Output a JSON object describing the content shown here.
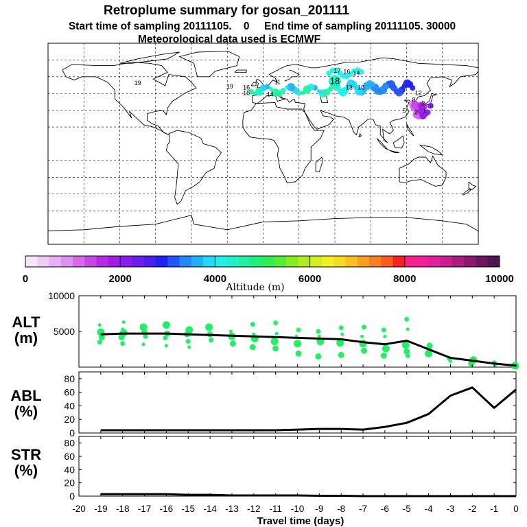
{
  "header": {
    "title": "Retroplume summary for gosan_201111",
    "sampling_line": "Start time of sampling 20111105.    0     End time of sampling 20111105. 30000",
    "met_line": "Meteorological data used is ECMWF"
  },
  "colorbar": {
    "label": "Altitude (m)",
    "ticks": [
      "0",
      "2000",
      "4000",
      "6000",
      "8000",
      "10000"
    ],
    "colors": [
      "#f4e6f8",
      "#eeccf5",
      "#e8b0f2",
      "#df90ee",
      "#d66ae8",
      "#c648e2",
      "#b42ae0",
      "#a01ee4",
      "#8a1ee8",
      "#6a1eea",
      "#4a1eec",
      "#2222f0",
      "#2255f5",
      "#2288f8",
      "#22b0fa",
      "#22d8fc",
      "#22f0e8",
      "#22f0c8",
      "#22f0a0",
      "#22ee78",
      "#33ec55",
      "#55ec33",
      "#88ec22",
      "#b0ec22",
      "#d4ee22",
      "#f0f022",
      "#f4dc22",
      "#f8c022",
      "#f8a022",
      "#f88022",
      "#f85a22",
      "#f02222",
      "#f8228a",
      "#f4209a",
      "#e020a0",
      "#c81e90",
      "#a81c80",
      "#8a1a70",
      "#6a1860",
      "#501450"
    ]
  },
  "map": {
    "labels": [
      {
        "text": "17",
        "lon": 62,
        "lat": 66
      },
      {
        "text": "16",
        "lon": 70,
        "lat": 65
      },
      {
        "text": "14",
        "lon": 78,
        "lat": 64
      },
      {
        "text": "18",
        "lon": 60,
        "lat": 56
      },
      {
        "text": "13",
        "lon": 72,
        "lat": 51
      },
      {
        "text": "10",
        "lon": 82,
        "lat": 51
      },
      {
        "text": "19",
        "lon": -28,
        "lat": 52
      },
      {
        "text": "16",
        "lon": -14,
        "lat": 51
      },
      {
        "text": "15",
        "lon": -14,
        "lat": 46
      },
      {
        "text": "14",
        "lon": 6,
        "lat": 45
      },
      {
        "text": "11",
        "lon": 12,
        "lat": 56
      },
      {
        "text": "19",
        "lon": -105,
        "lat": 55
      },
      {
        "text": "12",
        "lon": 130,
        "lat": 46
      },
      {
        "text": "8",
        "lon": 126,
        "lat": 40
      },
      {
        "text": "5",
        "lon": 118,
        "lat": 30
      },
      {
        "text": "3",
        "lon": 134,
        "lat": 37
      },
      {
        "text": "2",
        "lon": 128,
        "lat": 29
      },
      {
        "text": "1",
        "lon": 135,
        "lat": 30
      }
    ]
  },
  "panels": {
    "alt_label": [
      "ALT",
      "(m)"
    ],
    "abl_label": [
      "ABL",
      "(%)"
    ],
    "str_label": [
      "STR",
      "(%)"
    ]
  },
  "chart_data": {
    "type": "line",
    "xlabel": "Travel time (days)",
    "x": [
      -19,
      -18,
      -17,
      -16,
      -15,
      -14,
      -13,
      -12,
      -11,
      -10,
      -9,
      -8,
      -7,
      -6,
      -5,
      -4,
      -3,
      -2,
      -1,
      0
    ],
    "xlim": [
      -20,
      0
    ],
    "xticks": [
      "-20",
      "-19",
      "-18",
      "-17",
      "-16",
      "-15",
      "-14",
      "-13",
      "-12",
      "-11",
      "-10",
      "-9",
      "-8",
      "-7",
      "-6",
      "-5",
      "-4",
      "-3",
      "-2",
      "-1",
      "0"
    ],
    "alt": {
      "ylabel": "ALT (m)",
      "ylim": [
        0,
        10000
      ],
      "yticks": [
        "5000",
        "10000"
      ],
      "mean": [
        4600,
        4700,
        4700,
        4700,
        4600,
        4500,
        4400,
        4300,
        4200,
        4100,
        4000,
        3900,
        3500,
        3200,
        3700,
        2500,
        1300,
        900,
        500,
        200
      ],
      "particles": [
        [
          -19,
          5900
        ],
        [
          -19,
          4900
        ],
        [
          -19,
          4200
        ],
        [
          -19,
          3500
        ],
        [
          -18,
          5300
        ],
        [
          -18,
          4800
        ],
        [
          -18,
          4200
        ],
        [
          -18,
          3300
        ],
        [
          -18,
          6300
        ],
        [
          -17,
          5600
        ],
        [
          -17,
          4900
        ],
        [
          -17,
          4300
        ],
        [
          -17,
          3200
        ],
        [
          -16,
          5900
        ],
        [
          -16,
          4700
        ],
        [
          -16,
          4100
        ],
        [
          -16,
          3000
        ],
        [
          -15,
          5200
        ],
        [
          -15,
          4600
        ],
        [
          -15,
          3600
        ],
        [
          -15,
          2800
        ],
        [
          -14,
          5600
        ],
        [
          -14,
          4600
        ],
        [
          -14,
          3800
        ],
        [
          -13,
          5000
        ],
        [
          -13,
          4300
        ],
        [
          -13,
          3300
        ],
        [
          -12,
          6000
        ],
        [
          -12,
          4600
        ],
        [
          -12,
          4000
        ],
        [
          -12,
          2800
        ],
        [
          -11,
          6200
        ],
        [
          -11,
          4700
        ],
        [
          -11,
          3600
        ],
        [
          -11,
          2600
        ],
        [
          -10,
          5200
        ],
        [
          -10,
          4300
        ],
        [
          -10,
          3300
        ],
        [
          -10,
          1900
        ],
        [
          -9,
          5000
        ],
        [
          -9,
          4300
        ],
        [
          -9,
          3600
        ],
        [
          -9,
          1500
        ],
        [
          -8,
          5500
        ],
        [
          -8,
          4600
        ],
        [
          -8,
          3400
        ],
        [
          -8,
          1700
        ],
        [
          -7,
          5600
        ],
        [
          -7,
          4300
        ],
        [
          -7,
          3300
        ],
        [
          -7,
          2300
        ],
        [
          -6,
          5200
        ],
        [
          -6,
          4300
        ],
        [
          -6,
          2600
        ],
        [
          -6,
          1600
        ],
        [
          -5,
          6700
        ],
        [
          -5,
          5300
        ],
        [
          -5,
          3100
        ],
        [
          -5,
          2200
        ],
        [
          -5,
          1600
        ],
        [
          -4,
          2600
        ],
        [
          -4,
          1900
        ],
        [
          -4,
          3000
        ],
        [
          -3,
          1200
        ],
        [
          -3,
          800
        ],
        [
          -2,
          1000
        ],
        [
          -2,
          500
        ],
        [
          -1,
          600
        ],
        [
          -1,
          300
        ],
        [
          0,
          200
        ],
        [
          0,
          100
        ]
      ]
    },
    "abl": {
      "ylabel": "ABL (%)",
      "ylim": [
        0,
        90
      ],
      "yticks": [
        "0",
        "20",
        "40",
        "60",
        "80"
      ],
      "values": [
        4,
        4,
        4,
        4,
        4,
        4,
        4,
        4,
        4,
        5,
        6,
        6,
        5,
        9,
        15,
        28,
        55,
        67,
        37,
        64
      ]
    },
    "str": {
      "ylabel": "STR (%)",
      "ylim": [
        0,
        90
      ],
      "yticks": [
        "0",
        "20",
        "40",
        "60",
        "80"
      ],
      "values": [
        3,
        3,
        3,
        3,
        2,
        2,
        1,
        1,
        1,
        1,
        0.5,
        0.5,
        0,
        0,
        0,
        0,
        0,
        0,
        0,
        0
      ]
    }
  }
}
